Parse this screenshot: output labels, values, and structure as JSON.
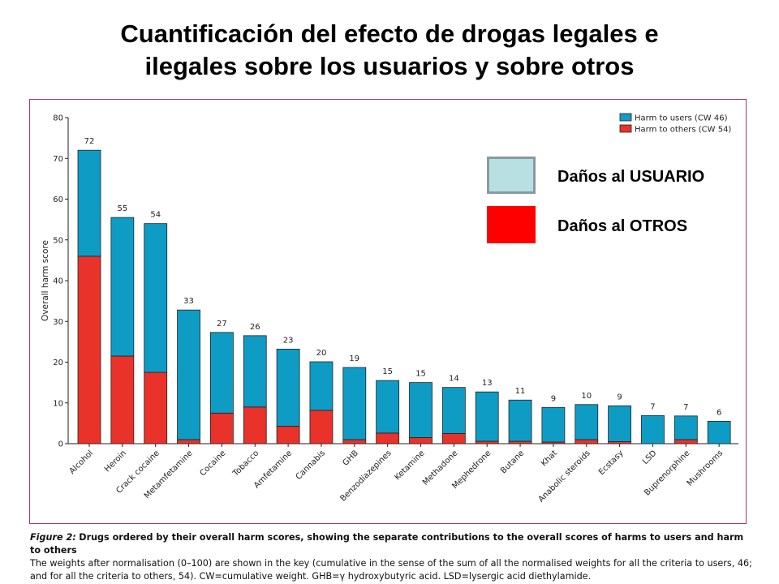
{
  "title": {
    "line1": "Cuantificación del efecto de drogas legales e",
    "line2": "ilegales sobre los usuarios y sobre otros"
  },
  "annotations": {
    "users_label": "Daños al USUARIO",
    "others_label": "Daños al OTROS",
    "users_color": "#b8e0e3",
    "others_color": "#ff0000"
  },
  "caption": {
    "figure_label": "Figure 2:",
    "lead": "Drugs ordered by their overall harm scores, showing the separate contributions to the overall scores of harms to users and harm to others",
    "body": "The weights after normalisation (0–100) are shown in the key (cumulative in the sense of the sum of all the normalised weights for all the criteria to users, 46; and for all the criteria to others, 54). CW=cumulative weight. GHB=γ hydroxybutyric acid. LSD=lysergic acid diethylamide."
  },
  "chart_data": {
    "type": "bar",
    "stacked": true,
    "ylabel": "Overall harm score",
    "ylim": [
      0,
      80
    ],
    "yticks": [
      "0",
      "10",
      "20",
      "30",
      "40",
      "50",
      "60",
      "70",
      "80"
    ],
    "categories": [
      "Alcohol",
      "Heroin",
      "Crack cocaine",
      "Metamfetamine",
      "Cocaine",
      "Tobacco",
      "Amfetamine",
      "Cannabis",
      "GHB",
      "Benzodiazepines",
      "Ketamine",
      "Methadone",
      "Mephedrone",
      "Butane",
      "Khat",
      "Anabolic steroids",
      "Ecstasy",
      "LSD",
      "Buprenorphine",
      "Mushrooms"
    ],
    "totals": [
      "72",
      "55",
      "54",
      "33",
      "27",
      "26",
      "23",
      "20",
      "19",
      "15",
      "15",
      "14",
      "13",
      "11",
      "9",
      "10",
      "9",
      "7",
      "7",
      "6"
    ],
    "series": [
      {
        "name": "Harm to others (CW 54)",
        "color": "#e8322a",
        "values": [
          46,
          21.5,
          17.5,
          1,
          7.5,
          9,
          4.3,
          8.2,
          1,
          2.6,
          1.5,
          2.5,
          0.6,
          0.6,
          0.4,
          1,
          0.5,
          0,
          1,
          0
        ]
      },
      {
        "name": "Harm to users (CW 46)",
        "color": "#0e9cc5",
        "values": [
          26,
          34,
          36.5,
          31.8,
          19.8,
          17.5,
          18.9,
          11.9,
          17.7,
          12.9,
          13.5,
          11.3,
          12.1,
          10.1,
          8.5,
          8.6,
          8.8,
          6.9,
          5.8,
          5.5
        ]
      }
    ],
    "legend": [
      {
        "label": "Harm to users (CW 46)",
        "color": "#0e9cc5"
      },
      {
        "label": "Harm to others (CW 54)",
        "color": "#e8322a"
      }
    ]
  }
}
